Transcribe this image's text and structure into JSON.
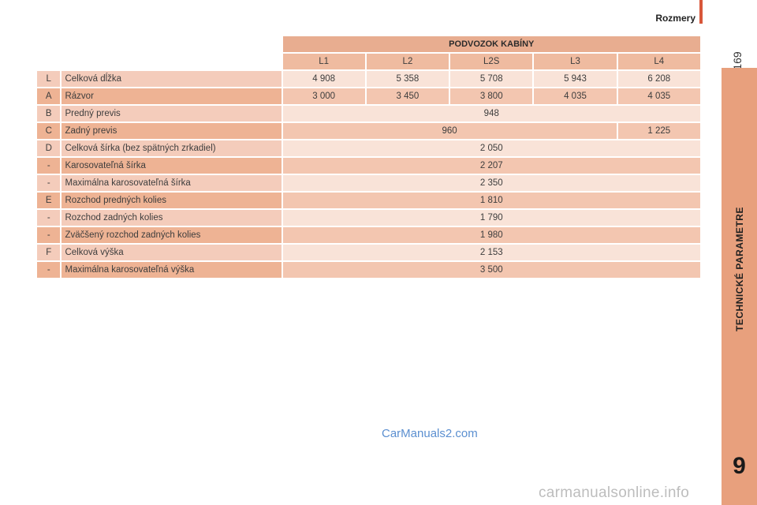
{
  "header": {
    "section_title": "Rozmery",
    "page_number": "169"
  },
  "chapter": {
    "label": "TECHNICKÉ PARAMETRE",
    "number": "9"
  },
  "table": {
    "group_header": "PODVOZOK KABÍNY",
    "columns": [
      "L1",
      "L2",
      "L2S",
      "L3",
      "L4"
    ],
    "rows": [
      {
        "code": "L",
        "name": "Celková dĺžka",
        "values": [
          "4 908",
          "5 358",
          "5 708",
          "5 943",
          "6 208"
        ]
      },
      {
        "code": "A",
        "name": "Rázvor",
        "values": [
          "3 000",
          "3 450",
          "3 800",
          "4 035",
          "4 035"
        ]
      },
      {
        "code": "B",
        "name": "Predný previs",
        "value": "948"
      },
      {
        "code": "C",
        "name": "Zadný previs",
        "value_l1_l3": "960",
        "value_l4": "1 225"
      },
      {
        "code": "D",
        "name": "Celková šírka (bez spätných zrkadiel)",
        "value": "2 050"
      },
      {
        "code": "-",
        "name": "Karosovateľná šírka",
        "value": "2 207"
      },
      {
        "code": "-",
        "name": "Maximálna karosovateľná šírka",
        "value": "2 350"
      },
      {
        "code": "E",
        "name": "Rozchod predných kolies",
        "value": "1 810"
      },
      {
        "code": "-",
        "name": "Rozchod zadných kolies",
        "value": "1 790"
      },
      {
        "code": "-",
        "name": "Zväčšený rozchod zadných kolies",
        "value": "1 980"
      },
      {
        "code": "F",
        "name": "Celková výška",
        "value": "2 153"
      },
      {
        "code": "-",
        "name": "Maximálna karosovateľná výška",
        "value": "3 500"
      }
    ]
  },
  "watermark": "CarManuals2.com",
  "footer_watermark": "carmanualsonline.info"
}
